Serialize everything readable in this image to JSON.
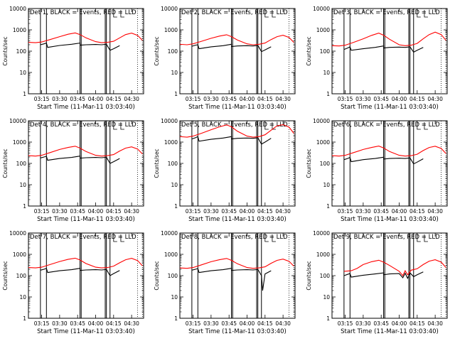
{
  "chart_data": [
    {
      "type": "line",
      "title": "Det 1, BLACK = Events, RED = LLD",
      "xlabel": "Start Time (11-Mar-11 03:03:40)",
      "ylabel": "Counts/sec",
      "x_ticks": [
        "03:15",
        "03:30",
        "03:45",
        "04:00",
        "04:15",
        "04:30"
      ],
      "y_ticks": [
        "1",
        "10",
        "100",
        "1000",
        "10000"
      ],
      "ylim": [
        1,
        10000
      ],
      "y_scale": "log",
      "series": [
        {
          "name": "RED = LLD",
          "color": "#ff0000",
          "x": [
            "03:04",
            "03:10",
            "03:15",
            "03:22",
            "03:30",
            "03:37",
            "03:43",
            "03:47",
            "03:52",
            "04:00",
            "04:05",
            "04:10",
            "04:15",
            "04:20",
            "04:25",
            "04:30",
            "04:35",
            "04:39"
          ],
          "y": [
            260,
            250,
            270,
            350,
            480,
            620,
            720,
            600,
            420,
            280,
            250,
            260,
            290,
            420,
            600,
            700,
            550,
            320
          ]
        },
        {
          "name": "BLACK = Events",
          "color": "#000000",
          "x": [
            "03:14",
            "03:17",
            "03:19",
            "03:20",
            "03:30",
            "03:40",
            "03:47",
            "03:47",
            "03:52",
            "04:00",
            "04:05",
            "04:09",
            "04:12",
            "04:15",
            "04:20"
          ],
          "y": [
            200,
            220,
            240,
            150,
            185,
            210,
            240,
            190,
            200,
            205,
            200,
            210,
            110,
            130,
            180
          ]
        }
      ]
    },
    {
      "type": "line",
      "title": "Det 2, BLACK = Events, RED = LLD",
      "xlabel": "Start Time (11-Mar-11 03:03:40)",
      "ylabel": "Counts/sec",
      "x_ticks": [
        "03:15",
        "03:30",
        "03:45",
        "04:00",
        "04:15",
        "04:30"
      ],
      "y_ticks": [
        "1",
        "10",
        "100",
        "1000",
        "10000"
      ],
      "ylim": [
        1,
        10000
      ],
      "y_scale": "log",
      "series": [
        {
          "name": "RED = LLD",
          "color": "#ff0000",
          "x": [
            "03:04",
            "03:10",
            "03:15",
            "03:22",
            "03:30",
            "03:37",
            "03:43",
            "03:47",
            "03:52",
            "04:00",
            "04:05",
            "04:10",
            "04:15",
            "04:20",
            "04:25",
            "04:30",
            "04:35",
            "04:39"
          ],
          "y": [
            210,
            200,
            220,
            290,
            400,
            510,
            590,
            480,
            330,
            220,
            200,
            210,
            240,
            350,
            480,
            560,
            440,
            260
          ]
        },
        {
          "name": "BLACK = Events",
          "color": "#000000",
          "x": [
            "03:14",
            "03:17",
            "03:19",
            "03:20",
            "03:30",
            "03:40",
            "03:47",
            "03:47",
            "03:52",
            "04:00",
            "04:05",
            "04:09",
            "04:12",
            "04:15",
            "04:20"
          ],
          "y": [
            170,
            190,
            200,
            130,
            160,
            180,
            210,
            165,
            175,
            180,
            175,
            185,
            95,
            115,
            160
          ]
        }
      ]
    },
    {
      "type": "line",
      "title": "Det 3, BLACK = Events, RED = LLD",
      "xlabel": "Start Time (11-Mar-11 03:03:40)",
      "ylabel": "Counts/sec",
      "x_ticks": [
        "03:15",
        "03:30",
        "03:45",
        "04:00",
        "04:15",
        "04:30"
      ],
      "y_ticks": [
        "1",
        "10",
        "100",
        "1000",
        "10000"
      ],
      "ylim": [
        1,
        10000
      ],
      "y_scale": "log",
      "series": [
        {
          "name": "RED = LLD",
          "color": "#ff0000",
          "x": [
            "03:04",
            "03:10",
            "03:15",
            "03:22",
            "03:30",
            "03:37",
            "03:43",
            "03:47",
            "03:52",
            "04:00",
            "04:05",
            "04:10",
            "04:15",
            "04:20",
            "04:25",
            "04:30",
            "04:35",
            "04:39"
          ],
          "y": [
            180,
            175,
            190,
            260,
            380,
            550,
            700,
            560,
            360,
            200,
            180,
            190,
            230,
            380,
            600,
            780,
            600,
            320
          ]
        },
        {
          "name": "BLACK = Events",
          "color": "#000000",
          "x": [
            "03:14",
            "03:17",
            "03:19",
            "03:20",
            "03:30",
            "03:40",
            "03:47",
            "03:47",
            "03:52",
            "04:00",
            "04:05",
            "04:09",
            "04:12",
            "04:15",
            "04:20"
          ],
          "y": [
            120,
            140,
            160,
            110,
            130,
            150,
            175,
            140,
            150,
            155,
            150,
            160,
            90,
            110,
            150
          ]
        }
      ]
    },
    {
      "type": "line",
      "title": "Det 4, BLACK = Events, RED = LLD",
      "xlabel": "Start Time (11-Mar-11 03:03:40)",
      "ylabel": "Counts/sec",
      "x_ticks": [
        "03:15",
        "03:30",
        "03:45",
        "04:00",
        "04:15",
        "04:30"
      ],
      "y_ticks": [
        "1",
        "10",
        "100",
        "1000",
        "10000"
      ],
      "ylim": [
        1,
        10000
      ],
      "y_scale": "log",
      "series": [
        {
          "name": "RED = LLD",
          "color": "#ff0000",
          "x": [
            "03:04",
            "03:10",
            "03:15",
            "03:22",
            "03:30",
            "03:37",
            "03:43",
            "03:47",
            "03:52",
            "04:00",
            "04:05",
            "04:10",
            "04:15",
            "04:20",
            "04:25",
            "04:30",
            "04:35",
            "04:39"
          ],
          "y": [
            230,
            220,
            240,
            320,
            450,
            560,
            640,
            520,
            360,
            240,
            220,
            230,
            260,
            380,
            520,
            600,
            470,
            280
          ]
        },
        {
          "name": "BLACK = Events",
          "color": "#000000",
          "x": [
            "03:14",
            "03:17",
            "03:19",
            "03:20",
            "03:30",
            "03:40",
            "03:47",
            "03:47",
            "03:52",
            "04:00",
            "04:05",
            "04:09",
            "04:12",
            "04:15",
            "04:20"
          ],
          "y": [
            180,
            200,
            215,
            140,
            170,
            190,
            220,
            175,
            185,
            190,
            185,
            195,
            100,
            120,
            170
          ]
        }
      ]
    },
    {
      "type": "line",
      "title": "Det 5, BLACK = Events, RED = LLD",
      "xlabel": "Start Time (11-Mar-11 03:03:40)",
      "ylabel": "Counts/sec",
      "x_ticks": [
        "03:15",
        "03:30",
        "03:45",
        "04:00",
        "04:15",
        "04:30"
      ],
      "y_ticks": [
        "1",
        "10",
        "100",
        "1000",
        "10000"
      ],
      "ylim": [
        1,
        10000
      ],
      "y_scale": "log",
      "series": [
        {
          "name": "RED = LLD",
          "color": "#ff0000",
          "x": [
            "03:04",
            "03:10",
            "03:15",
            "03:22",
            "03:30",
            "03:37",
            "03:43",
            "03:47",
            "03:52",
            "04:00",
            "04:05",
            "04:10",
            "04:15",
            "04:20",
            "04:25",
            "04:30",
            "04:35",
            "04:39"
          ],
          "y": [
            1800,
            1700,
            1900,
            2600,
            3800,
            5200,
            6400,
            5200,
            3200,
            1900,
            1700,
            1800,
            2200,
            3600,
            5800,
            6600,
            5000,
            2600
          ]
        },
        {
          "name": "BLACK = Events",
          "color": "#000000",
          "x": [
            "03:14",
            "03:17",
            "03:19",
            "03:20",
            "03:30",
            "03:40",
            "03:47",
            "03:47",
            "03:52",
            "04:00",
            "04:05",
            "04:09",
            "04:12",
            "04:15",
            "04:20"
          ],
          "y": [
            1400,
            1600,
            1800,
            1100,
            1350,
            1550,
            1800,
            1400,
            1500,
            1550,
            1500,
            1600,
            800,
            1000,
            1500
          ]
        }
      ]
    },
    {
      "type": "line",
      "title": "Det 6, BLACK = Events, RED = LLD",
      "xlabel": "Start Time (11-Mar-11 03:03:40)",
      "ylabel": "Counts/sec",
      "x_ticks": [
        "03:15",
        "03:30",
        "03:45",
        "04:00",
        "04:15",
        "04:30"
      ],
      "y_ticks": [
        "1",
        "10",
        "100",
        "1000",
        "10000"
      ],
      "ylim": [
        1,
        10000
      ],
      "y_scale": "log",
      "series": [
        {
          "name": "RED = LLD",
          "color": "#ff0000",
          "x": [
            "03:04",
            "03:10",
            "03:15",
            "03:22",
            "03:30",
            "03:37",
            "03:43",
            "03:47",
            "03:52",
            "04:00",
            "04:05",
            "04:10",
            "04:15",
            "04:20",
            "04:25",
            "04:30",
            "04:35",
            "04:39"
          ],
          "y": [
            230,
            220,
            240,
            320,
            450,
            560,
            650,
            530,
            360,
            240,
            220,
            230,
            270,
            400,
            560,
            640,
            500,
            290
          ]
        },
        {
          "name": "BLACK = Events",
          "color": "#000000",
          "x": [
            "03:14",
            "03:17",
            "03:19",
            "03:20",
            "03:30",
            "03:40",
            "03:47",
            "03:47",
            "03:52",
            "04:00",
            "04:05",
            "04:09",
            "04:12",
            "04:15",
            "04:20"
          ],
          "y": [
            150,
            170,
            190,
            120,
            150,
            170,
            195,
            160,
            170,
            175,
            170,
            180,
            95,
            115,
            165
          ]
        }
      ]
    },
    {
      "type": "line",
      "title": "Det 7, BLACK = Events, RED = LLD",
      "xlabel": "Start Time (11-Mar-11 03:03:40)",
      "ylabel": "Counts/sec",
      "x_ticks": [
        "03:15",
        "03:30",
        "03:45",
        "04:00",
        "04:15",
        "04:30"
      ],
      "y_ticks": [
        "1",
        "10",
        "100",
        "1000",
        "10000"
      ],
      "ylim": [
        1,
        10000
      ],
      "y_scale": "log",
      "series": [
        {
          "name": "RED = LLD",
          "color": "#ff0000",
          "x": [
            "03:04",
            "03:10",
            "03:15",
            "03:22",
            "03:30",
            "03:37",
            "03:43",
            "03:47",
            "03:52",
            "04:00",
            "04:05",
            "04:10",
            "04:15",
            "04:20",
            "04:25",
            "04:30",
            "04:35",
            "04:39"
          ],
          "y": [
            240,
            230,
            250,
            330,
            460,
            580,
            660,
            540,
            370,
            250,
            230,
            240,
            280,
            400,
            560,
            650,
            510,
            290
          ]
        },
        {
          "name": "BLACK = Events",
          "color": "#000000",
          "x": [
            "03:14",
            "03:17",
            "03:19",
            "03:20",
            "03:30",
            "03:40",
            "03:47",
            "03:47",
            "03:52",
            "04:00",
            "04:05",
            "04:09",
            "04:12",
            "04:15",
            "04:20"
          ],
          "y": [
            180,
            200,
            220,
            140,
            170,
            190,
            220,
            175,
            185,
            190,
            185,
            195,
            100,
            125,
            175
          ]
        }
      ]
    },
    {
      "type": "line",
      "title": "Det 8, BLACK = Events, RED = LLD",
      "xlabel": "Start Time (11-Mar-11 03:03:40)",
      "ylabel": "Counts/sec",
      "x_ticks": [
        "03:15",
        "03:30",
        "03:45",
        "04:00",
        "04:15",
        "04:30"
      ],
      "y_ticks": [
        "1",
        "10",
        "100",
        "1000",
        "10000"
      ],
      "ylim": [
        1,
        10000
      ],
      "y_scale": "log",
      "series": [
        {
          "name": "RED = LLD",
          "color": "#ff0000",
          "x": [
            "03:04",
            "03:10",
            "03:15",
            "03:22",
            "03:30",
            "03:37",
            "03:43",
            "03:47",
            "03:52",
            "04:00",
            "04:05",
            "04:10",
            "04:15",
            "04:20",
            "04:25",
            "04:30",
            "04:35",
            "04:39"
          ],
          "y": [
            230,
            220,
            240,
            320,
            450,
            560,
            640,
            520,
            360,
            240,
            220,
            230,
            260,
            380,
            520,
            600,
            470,
            280
          ]
        },
        {
          "name": "BLACK = Events",
          "color": "#000000",
          "x": [
            "03:14",
            "03:17",
            "03:19",
            "03:20",
            "03:30",
            "03:40",
            "03:47",
            "03:47",
            "03:52",
            "04:00",
            "04:05",
            "04:09",
            "04:12",
            "04:13",
            "04:15",
            "04:20"
          ],
          "y": [
            180,
            200,
            215,
            140,
            170,
            190,
            220,
            175,
            185,
            190,
            185,
            195,
            100,
            20,
            120,
            170
          ]
        }
      ]
    },
    {
      "type": "line",
      "title": "Det 9, BLACK = Events, RED = LLD",
      "xlabel": "Start Time (11-Mar-11 03:03:40)",
      "ylabel": "Counts/sec",
      "x_ticks": [
        "03:15",
        "03:30",
        "03:45",
        "04:00",
        "04:15",
        "04:30"
      ],
      "y_ticks": [
        "1",
        "10",
        "100",
        "1000",
        "10000"
      ],
      "ylim": [
        1,
        10000
      ],
      "y_scale": "log",
      "series": [
        {
          "name": "RED = LLD",
          "color": "#ff0000",
          "x": [
            "03:14",
            "03:20",
            "03:25",
            "03:30",
            "03:37",
            "03:43",
            "03:47",
            "03:52",
            "04:00",
            "04:03",
            "04:05",
            "04:07",
            "04:10",
            "04:15",
            "04:20",
            "04:25",
            "04:30",
            "04:35",
            "04:39"
          ],
          "y": [
            160,
            170,
            220,
            330,
            450,
            530,
            430,
            300,
            160,
            100,
            170,
            110,
            180,
            210,
            330,
            480,
            560,
            430,
            240
          ]
        },
        {
          "name": "BLACK = Events",
          "color": "#000000",
          "x": [
            "03:14",
            "03:17",
            "03:19",
            "03:20",
            "03:30",
            "03:40",
            "03:47",
            "03:47",
            "03:52",
            "04:00",
            "04:03",
            "04:05",
            "04:07",
            "04:09",
            "04:12",
            "04:15",
            "04:20"
          ],
          "y": [
            100,
            115,
            125,
            85,
            105,
            120,
            135,
            110,
            120,
            125,
            80,
            130,
            75,
            135,
            90,
            110,
            150
          ]
        }
      ]
    }
  ]
}
